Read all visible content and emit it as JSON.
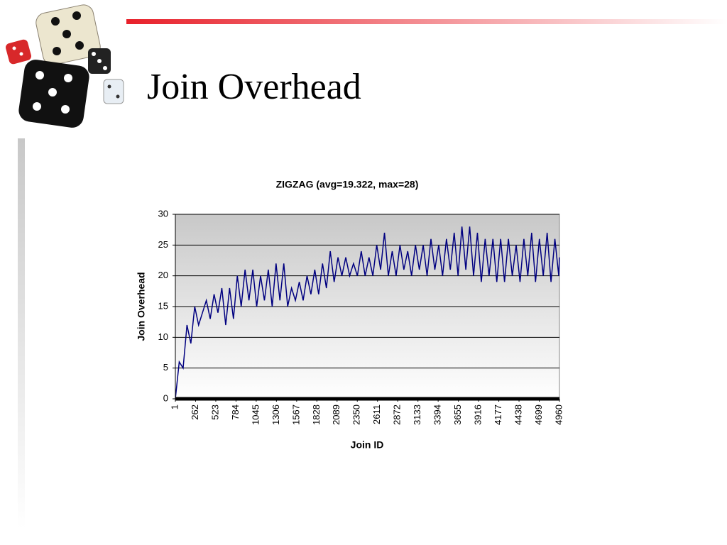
{
  "slide_title": "Join Overhead",
  "chart_data": {
    "type": "line",
    "title": "ZIGZAG (avg=19.322, max=28)",
    "x_label": "Join ID",
    "y_label": "Join Overhead",
    "color": "#000080",
    "grid": true,
    "xlim": [
      1,
      4960
    ],
    "xticks": [
      1,
      262,
      523,
      784,
      1045,
      1306,
      1567,
      1828,
      2089,
      2350,
      2611,
      2872,
      3133,
      3394,
      3655,
      3916,
      4177,
      4438,
      4699,
      4960
    ],
    "ylim": [
      0,
      30
    ],
    "yticks": [
      0,
      5,
      10,
      15,
      20,
      25,
      30
    ],
    "x": [
      1,
      51,
      101,
      151,
      201,
      251,
      301,
      351,
      401,
      451,
      501,
      551,
      601,
      651,
      701,
      751,
      801,
      851,
      901,
      951,
      1001,
      1051,
      1101,
      1151,
      1201,
      1251,
      1301,
      1351,
      1401,
      1451,
      1501,
      1551,
      1601,
      1651,
      1701,
      1751,
      1801,
      1851,
      1901,
      1951,
      2001,
      2051,
      2101,
      2151,
      2201,
      2251,
      2301,
      2351,
      2401,
      2451,
      2501,
      2551,
      2601,
      2651,
      2701,
      2751,
      2801,
      2851,
      2901,
      2951,
      3001,
      3051,
      3101,
      3151,
      3201,
      3251,
      3301,
      3351,
      3401,
      3451,
      3501,
      3551,
      3601,
      3651,
      3701,
      3751,
      3801,
      3851,
      3901,
      3951,
      4001,
      4051,
      4101,
      4151,
      4201,
      4251,
      4301,
      4351,
      4401,
      4451,
      4501,
      4551,
      4601,
      4651,
      4701,
      4751,
      4801,
      4851,
      4901,
      4951,
      4960
    ],
    "values": [
      0,
      6,
      5,
      12,
      9,
      15,
      12,
      14,
      16,
      13,
      17,
      14,
      18,
      12,
      18,
      13,
      20,
      15,
      21,
      16,
      21,
      15,
      20,
      16,
      21,
      15,
      22,
      16,
      22,
      15,
      18,
      16,
      19,
      16,
      20,
      17,
      21,
      17,
      22,
      18,
      24,
      19,
      23,
      20,
      23,
      20,
      22,
      20,
      24,
      20,
      23,
      20,
      25,
      21,
      27,
      20,
      24,
      20,
      25,
      21,
      24,
      20,
      25,
      21,
      25,
      20,
      26,
      21,
      25,
      20,
      26,
      21,
      27,
      20,
      28,
      21,
      28,
      20,
      27,
      19,
      26,
      20,
      26,
      19,
      26,
      19,
      26,
      20,
      25,
      19,
      26,
      20,
      27,
      19,
      26,
      20,
      27,
      19,
      26,
      20,
      23
    ]
  }
}
